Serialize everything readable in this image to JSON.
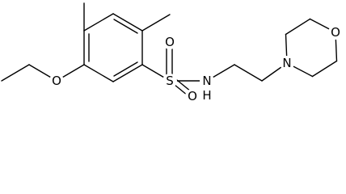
{
  "atoms": [
    "O",
    "S",
    "O",
    "O",
    "N",
    "H",
    "N",
    "O"
  ]
}
